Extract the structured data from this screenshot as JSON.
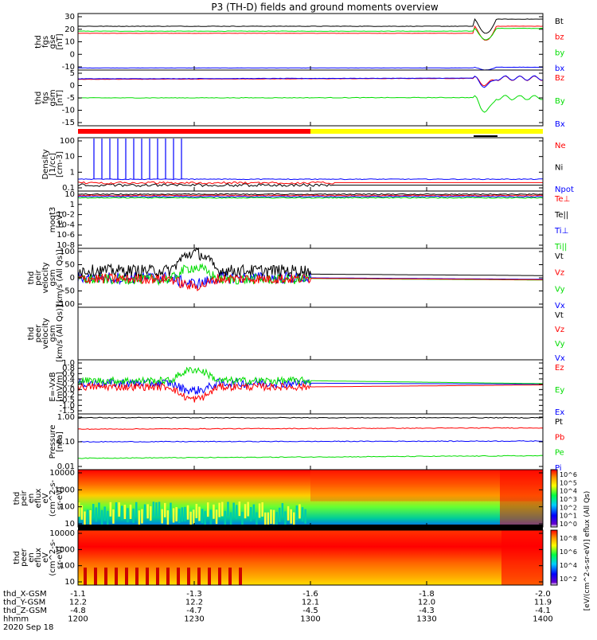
{
  "title": "P3 (TH-D) fields and ground moments overview",
  "colors": {
    "black": "#000000",
    "red": "#ff0000",
    "green": "#00dd00",
    "blue": "#0000ff",
    "yellow": "#ffff00"
  },
  "chart_data": {
    "type": "line",
    "x_ticks": [
      "1200",
      "1230",
      "1300",
      "1330",
      "1400"
    ],
    "panels": [
      {
        "id": "fgs",
        "ylabel": [
          "thd",
          "fgs",
          "gse",
          "[nT]"
        ],
        "ylim": [
          -10,
          30
        ],
        "ticks": [
          "30",
          "20",
          "10",
          "0",
          "-10"
        ],
        "legend": [
          {
            "name": "Bt",
            "color": "black"
          },
          {
            "name": "bz",
            "color": "red"
          },
          {
            "name": "by",
            "color": "green"
          },
          {
            "name": "bx",
            "color": "blue"
          }
        ]
      },
      {
        "id": "fgs-gsm",
        "ylabel": [
          "thd",
          "fgs",
          "gsm",
          "[nT]"
        ],
        "ylim": [
          -20,
          10
        ],
        "ticks": [
          "5",
          "0",
          "-5",
          "-10",
          "-15"
        ],
        "legend": [
          {
            "name": "Bz",
            "color": "red"
          },
          {
            "name": "By",
            "color": "green"
          },
          {
            "name": "Bx",
            "color": "blue"
          }
        ]
      },
      {
        "id": "density",
        "ylabel": [
          "Density",
          "[1/cc]",
          "[cm-3]"
        ],
        "scale": "log",
        "ticks": [
          "100",
          "10",
          "1",
          "0.1"
        ],
        "legend": [
          {
            "name": "Ne",
            "color": "red"
          },
          {
            "name": "Ni",
            "color": "black"
          },
          {
            "name": "Npot",
            "color": "blue"
          }
        ]
      },
      {
        "id": "temp",
        "ylabel": [
          "moqt3",
          "[eV]"
        ],
        "scale": "log",
        "ticks": [
          "10",
          "1",
          "10-2",
          "10-4",
          "10-6",
          "10-8"
        ],
        "legend": [
          {
            "name": "Te⊥",
            "color": "red"
          },
          {
            "name": "Te||",
            "color": "black"
          },
          {
            "name": "Ti⊥",
            "color": "blue"
          },
          {
            "name": "Ti||",
            "color": "green"
          }
        ]
      },
      {
        "id": "peir-vel",
        "ylabel": [
          "thd",
          "peir",
          "velocity",
          "gsm",
          "[km/s (All Qs)]"
        ],
        "ylim": [
          -100,
          100
        ],
        "ticks": [
          "100",
          "50",
          "0",
          "-50",
          "-100"
        ],
        "legend": [
          {
            "name": "Vt",
            "color": "black"
          },
          {
            "name": "Vz",
            "color": "red"
          },
          {
            "name": "Vy",
            "color": "green"
          },
          {
            "name": "Vx",
            "color": "blue"
          }
        ]
      },
      {
        "id": "peer-vel",
        "ylabel": [
          "thd",
          "peer",
          "velocity",
          "gsm",
          "[km/s (All Qs)]"
        ],
        "ticks": [],
        "legend": [
          {
            "name": "Vt",
            "color": "black"
          },
          {
            "name": "Vz",
            "color": "red"
          },
          {
            "name": "Vy",
            "color": "green"
          },
          {
            "name": "Vx",
            "color": "blue"
          }
        ]
      },
      {
        "id": "efield",
        "ylabel": [
          "E=-VxB",
          "[mV/m]"
        ],
        "ylim": [
          -1.2,
          1.0
        ],
        "ticks": [
          "1.0",
          "0.8",
          "0.6",
          "0.4",
          "0.2",
          "0.0",
          "-0.2",
          "-0.5",
          "-1.0",
          "-1.5"
        ],
        "legend": [
          {
            "name": "Ez",
            "color": "red"
          },
          {
            "name": "Ey",
            "color": "green"
          },
          {
            "name": "Ex",
            "color": "blue"
          }
        ]
      },
      {
        "id": "pressure",
        "ylabel": [
          "Pressure",
          "[nPa]"
        ],
        "scale": "log",
        "ticks": [
          "1.00",
          "0.10",
          "0.01"
        ],
        "legend": [
          {
            "name": "Pt",
            "color": "black"
          },
          {
            "name": "Pb",
            "color": "red"
          },
          {
            "name": "Pe",
            "color": "green"
          },
          {
            "name": "Pi",
            "color": "blue"
          }
        ]
      },
      {
        "id": "peir-spec",
        "ylabel": [
          "thd",
          "peir",
          "en",
          "eflux",
          "eV",
          "(cm^2-s-",
          "sr-eV)"
        ],
        "ticks": [
          "10000",
          "1000",
          "100",
          "10"
        ]
      },
      {
        "id": "peer-spec",
        "ylabel": [
          "thd",
          "peer",
          "en",
          "eflux",
          "eV",
          "(cm^2-s-",
          "sr-eV)"
        ],
        "ticks": [
          "10000",
          "1000",
          "100",
          "10"
        ]
      }
    ],
    "colorbar": {
      "upper_ticks": [
        "10^6",
        "10^5",
        "10^4",
        "10^3",
        "10^2",
        "10^1",
        "10^0"
      ],
      "lower_ticks": [
        "10^8",
        "10^6",
        "10^4",
        "10^2"
      ],
      "label": "[eV/(cm^2-s-sr-eV)] eflux (All Qs)"
    },
    "ephemeris": [
      {
        "label": "thd_X-GSM",
        "values": [
          "-1.1",
          "-1.3",
          "-1.6",
          "-1.8",
          "-2.0"
        ]
      },
      {
        "label": "thd_Y-GSM",
        "values": [
          "12.2",
          "12.2",
          "12.1",
          "12.0",
          "11.9"
        ]
      },
      {
        "label": "thd_Z-GSM",
        "values": [
          "-4.8",
          "-4.7",
          "-4.5",
          "-4.3",
          "-4.1"
        ]
      },
      {
        "label": "hhmm",
        "values": [
          "1200",
          "1230",
          "1300",
          "1330",
          "1400"
        ]
      }
    ],
    "date": "2020 Sep 18"
  }
}
